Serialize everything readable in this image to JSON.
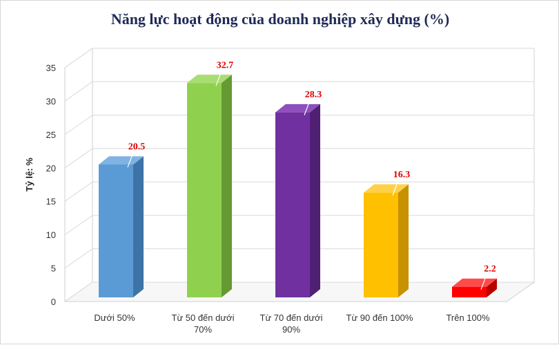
{
  "chart_data": {
    "type": "bar",
    "title": "Năng lực hoạt động của doanh nghiệp xây dựng (%)",
    "ylabel": "Tỷ lệ: %",
    "xlabel": "",
    "ylim": [
      0,
      35
    ],
    "yticks": [
      0,
      5,
      10,
      15,
      20,
      25,
      30,
      35
    ],
    "grid": true,
    "legend": "none",
    "categories": [
      [
        "Dưới 50%"
      ],
      [
        "Từ 50 đến dưới",
        "70%"
      ],
      [
        "Từ 70 đến dưới",
        "90%"
      ],
      [
        "Từ 90 đến 100%"
      ],
      [
        "Trên 100%"
      ]
    ],
    "values": [
      20.5,
      32.7,
      28.3,
      16.3,
      2.2
    ],
    "value_labels": [
      "20.5",
      "32.7",
      "28.3",
      "16.3",
      "2.2"
    ],
    "colors": [
      {
        "front": "#5b9bd5",
        "side": "#3d73a6",
        "top": "#7fb3e2"
      },
      {
        "front": "#8fd14f",
        "side": "#659a33",
        "top": "#a8dd72"
      },
      {
        "front": "#7030a0",
        "side": "#4f1f73",
        "top": "#8c4fbb"
      },
      {
        "front": "#ffc000",
        "side": "#c69200",
        "top": "#ffd14a"
      },
      {
        "front": "#ff0000",
        "side": "#b80000",
        "top": "#ff4a4a"
      }
    ]
  }
}
